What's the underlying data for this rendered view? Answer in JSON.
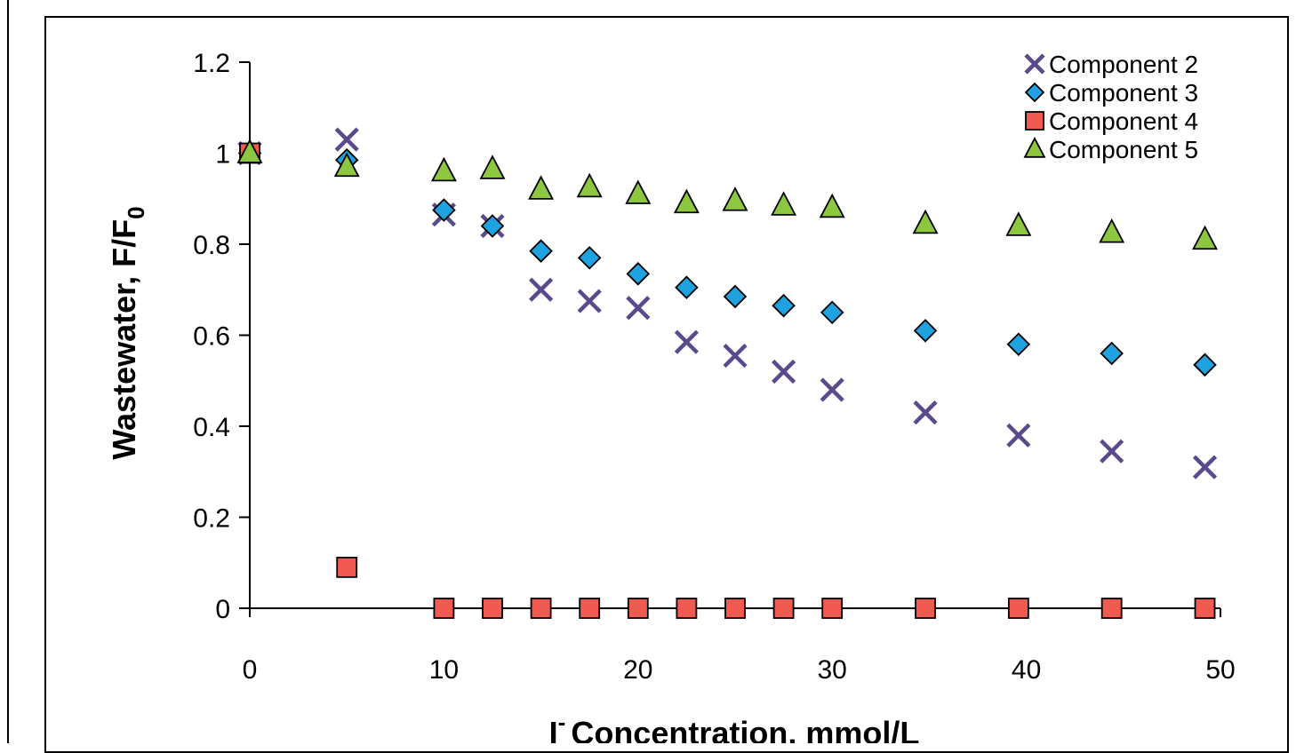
{
  "chart_data": {
    "type": "scatter",
    "title": "",
    "xlabel": "Concentration, mmol/L",
    "xlabel_prefix": "I",
    "xlabel_sup": "-",
    "ylabel": "Wastewater,  F/F",
    "ylabel_sub": "0",
    "xlim": [
      0,
      50
    ],
    "ylim": [
      0,
      1.2
    ],
    "xticks": [
      "0",
      "10",
      "20",
      "30",
      "40",
      "50"
    ],
    "yticks": [
      "0",
      "0.2",
      "0.4",
      "0.6",
      "0.8",
      "1",
      "1.2"
    ],
    "grid": false,
    "legend_position": "top-right",
    "series": [
      {
        "name": "Component 2",
        "marker": "x",
        "color": "#5b4a8b",
        "x": [
          0,
          5,
          10,
          12.5,
          15,
          17.5,
          20,
          22.5,
          25,
          27.5,
          30,
          34.8,
          39.6,
          44.4,
          49.2
        ],
        "y": [
          1.0,
          1.03,
          0.865,
          0.84,
          0.7,
          0.675,
          0.66,
          0.585,
          0.555,
          0.52,
          0.48,
          0.43,
          0.38,
          0.345,
          0.31
        ]
      },
      {
        "name": "Component 3",
        "marker": "diamond",
        "color": "#1ea3e0",
        "x": [
          0,
          5,
          10,
          12.5,
          15,
          17.5,
          20,
          22.5,
          25,
          27.5,
          30,
          34.8,
          39.6,
          44.4,
          49.2
        ],
        "y": [
          1.0,
          0.985,
          0.875,
          0.84,
          0.785,
          0.77,
          0.735,
          0.705,
          0.685,
          0.665,
          0.65,
          0.61,
          0.58,
          0.56,
          0.535
        ]
      },
      {
        "name": "Component 4",
        "marker": "square",
        "color": "#f05a50",
        "x": [
          0,
          5,
          10,
          12.5,
          15,
          17.5,
          20,
          22.5,
          25,
          27.5,
          30,
          34.8,
          39.6,
          44.4,
          49.2
        ],
        "y": [
          1.0,
          0.09,
          0,
          0,
          0,
          0,
          0,
          0,
          0,
          0,
          0,
          0,
          0,
          0,
          0
        ]
      },
      {
        "name": "Component 5",
        "marker": "triangle",
        "color": "#8dc63f",
        "x": [
          0,
          5,
          10,
          12.5,
          15,
          17.5,
          20,
          22.5,
          25,
          27.5,
          30,
          34.8,
          39.6,
          44.4,
          49.2
        ],
        "y": [
          1.0,
          0.97,
          0.96,
          0.965,
          0.92,
          0.925,
          0.91,
          0.89,
          0.895,
          0.885,
          0.88,
          0.845,
          0.84,
          0.825,
          0.81
        ]
      }
    ]
  }
}
